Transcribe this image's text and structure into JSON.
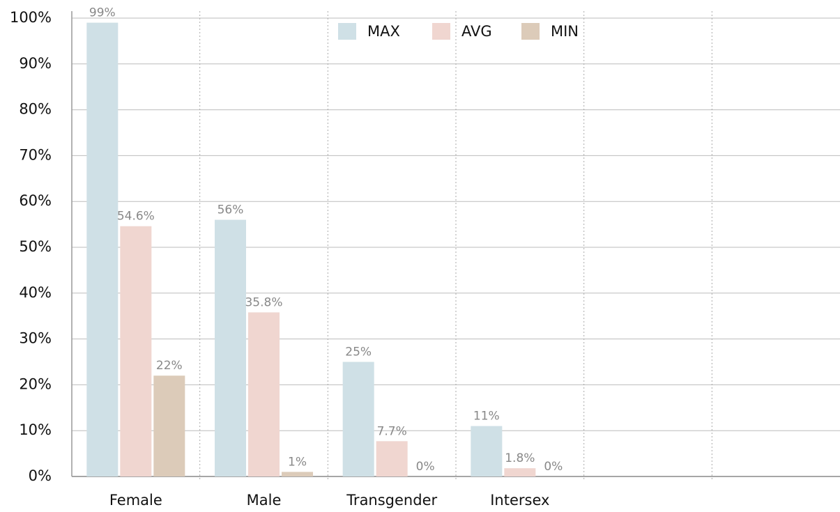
{
  "chart_data": {
    "type": "bar",
    "categories": [
      "Female",
      "Male",
      "Transgender",
      "Intersex",
      null,
      null
    ],
    "series": [
      {
        "name": "MAX",
        "color": "#cfe0e6",
        "values": [
          99,
          56,
          25,
          11,
          null,
          null
        ],
        "value_labels": [
          "99%",
          "56%",
          "25%",
          "11%",
          null,
          null
        ]
      },
      {
        "name": "AVG",
        "color": "#f0d6d0",
        "values": [
          54.6,
          35.8,
          7.7,
          1.8,
          null,
          null
        ],
        "value_labels": [
          "54.6%",
          "35.8%",
          "7.7%",
          "1.8%",
          null,
          null
        ]
      },
      {
        "name": "MIN",
        "color": "#dccbb9",
        "values": [
          22,
          1,
          0,
          0,
          null,
          null
        ],
        "value_labels": [
          "22%",
          "1%",
          "0%",
          "0%",
          null,
          null
        ]
      }
    ],
    "ylim": [
      0,
      100
    ],
    "yticks": [
      {
        "value": 0,
        "label": "0%"
      },
      {
        "value": 10,
        "label": "10%"
      },
      {
        "value": 20,
        "label": "20%"
      },
      {
        "value": 30,
        "label": "30%"
      },
      {
        "value": 40,
        "label": "40%"
      },
      {
        "value": 50,
        "label": "50%"
      },
      {
        "value": 60,
        "label": "60%"
      },
      {
        "value": 70,
        "label": "70%"
      },
      {
        "value": 80,
        "label": "80%"
      },
      {
        "value": 90,
        "label": "90%"
      },
      {
        "value": 100,
        "label": "100%"
      }
    ],
    "grid": true,
    "legend": "top"
  }
}
